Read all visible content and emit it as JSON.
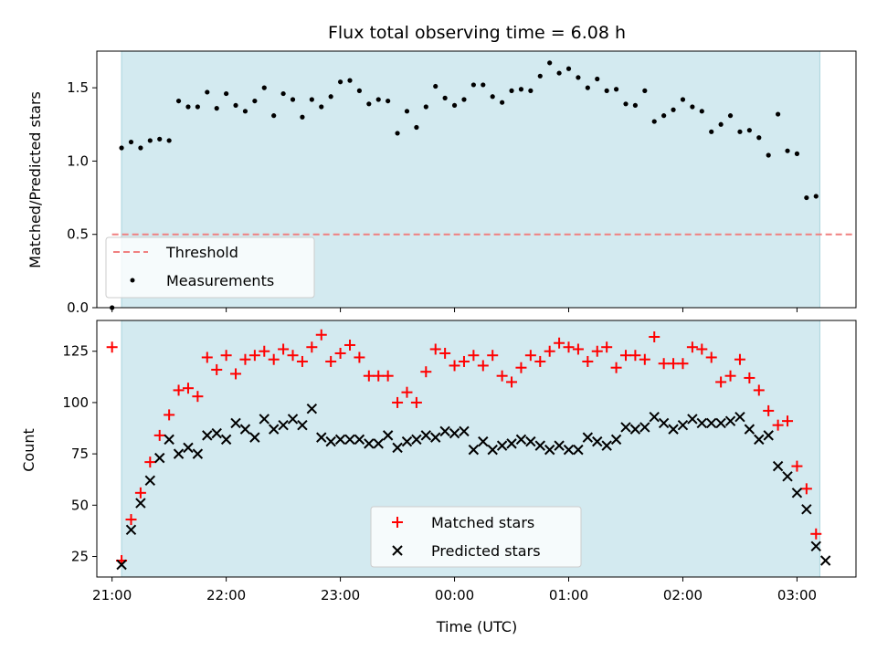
{
  "chart_data": [
    {
      "type": "scatter",
      "title": "Flux total observing time = 6.08 h",
      "xlabel": "",
      "ylabel": "Matched/Predicted stars",
      "xlim": [
        "20:52",
        "03:31"
      ],
      "ylim": [
        0,
        1.75
      ],
      "yticks": [
        "0.0",
        "0.5",
        "1.0",
        "1.5"
      ],
      "x_ticks": [
        "21:00",
        "22:00",
        "23:00",
        "00:00",
        "01:00",
        "02:00",
        "03:00"
      ],
      "observing_window": [
        "21:05",
        "03:12"
      ],
      "colors": {
        "window": "#d3eaf0",
        "threshold": "#f08080",
        "points": "#000000"
      },
      "legend": {
        "position": "lower-left",
        "entries": [
          "Threshold",
          "Measurements"
        ]
      },
      "threshold": 0.5,
      "series": [
        {
          "name": "Measurements",
          "x": [
            "21:00",
            "21:05",
            "21:10",
            "21:15",
            "21:20",
            "21:25",
            "21:30",
            "21:35",
            "21:40",
            "21:45",
            "21:50",
            "21:55",
            "22:00",
            "22:05",
            "22:10",
            "22:15",
            "22:20",
            "22:25",
            "22:30",
            "22:35",
            "22:40",
            "22:45",
            "22:50",
            "22:55",
            "23:00",
            "23:05",
            "23:10",
            "23:15",
            "23:20",
            "23:25",
            "23:30",
            "23:35",
            "23:40",
            "23:45",
            "23:50",
            "23:55",
            "00:00",
            "00:05",
            "00:10",
            "00:15",
            "00:20",
            "00:25",
            "00:30",
            "00:35",
            "00:40",
            "00:45",
            "00:50",
            "00:55",
            "01:00",
            "01:05",
            "01:10",
            "01:15",
            "01:20",
            "01:25",
            "01:30",
            "01:35",
            "01:40",
            "01:45",
            "01:50",
            "01:55",
            "02:00",
            "02:05",
            "02:10",
            "02:15",
            "02:20",
            "02:25",
            "02:30",
            "02:35",
            "02:40",
            "02:45",
            "02:50",
            "02:55",
            "03:00",
            "03:05",
            "03:10"
          ],
          "y": [
            0.0,
            1.09,
            1.13,
            1.09,
            1.14,
            1.15,
            1.14,
            1.41,
            1.37,
            1.37,
            1.47,
            1.36,
            1.46,
            1.38,
            1.34,
            1.41,
            1.5,
            1.31,
            1.46,
            1.42,
            1.3,
            1.42,
            1.37,
            1.44,
            1.54,
            1.55,
            1.48,
            1.39,
            1.42,
            1.41,
            1.19,
            1.34,
            1.23,
            1.37,
            1.51,
            1.43,
            1.38,
            1.42,
            1.52,
            1.52,
            1.44,
            1.4,
            1.48,
            1.49,
            1.48,
            1.58,
            1.67,
            1.6,
            1.63,
            1.57,
            1.5,
            1.56,
            1.48,
            1.49,
            1.39,
            1.38,
            1.48,
            1.27,
            1.31,
            1.35,
            1.42,
            1.37,
            1.34,
            1.2,
            1.25,
            1.31,
            1.2,
            1.21,
            1.16,
            1.04,
            1.32,
            1.07,
            1.05,
            0.75,
            0.76
          ]
        }
      ]
    },
    {
      "type": "scatter",
      "title": "",
      "xlabel": "Time (UTC)",
      "ylabel": "Count",
      "xlim": [
        "20:52",
        "03:31"
      ],
      "ylim": [
        15,
        140
      ],
      "yticks": [
        "25",
        "50",
        "75",
        "100",
        "125"
      ],
      "x_ticks": [
        "21:00",
        "22:00",
        "23:00",
        "00:00",
        "01:00",
        "02:00",
        "03:00"
      ],
      "observing_window": [
        "21:05",
        "03:12"
      ],
      "colors": {
        "window": "#d3eaf0",
        "matched": "#ff0000",
        "predicted": "#000000"
      },
      "legend": {
        "position": "lower-center",
        "entries": [
          "Matched stars",
          "Predicted stars"
        ]
      },
      "series": [
        {
          "name": "Matched stars",
          "marker": "plus",
          "x": [
            "21:00",
            "21:05",
            "21:10",
            "21:15",
            "21:20",
            "21:25",
            "21:30",
            "21:35",
            "21:40",
            "21:45",
            "21:50",
            "21:55",
            "22:00",
            "22:05",
            "22:10",
            "22:15",
            "22:20",
            "22:25",
            "22:30",
            "22:35",
            "22:40",
            "22:45",
            "22:50",
            "22:55",
            "23:00",
            "23:05",
            "23:10",
            "23:15",
            "23:20",
            "23:25",
            "23:30",
            "23:35",
            "23:40",
            "23:45",
            "23:50",
            "23:55",
            "00:00",
            "00:05",
            "00:10",
            "00:15",
            "00:20",
            "00:25",
            "00:30",
            "00:35",
            "00:40",
            "00:45",
            "00:50",
            "00:55",
            "01:00",
            "01:05",
            "01:10",
            "01:15",
            "01:20",
            "01:25",
            "01:30",
            "01:35",
            "01:40",
            "01:45",
            "01:50",
            "01:55",
            "02:00",
            "02:05",
            "02:10",
            "02:15",
            "02:20",
            "02:25",
            "02:30",
            "02:35",
            "02:40",
            "02:45",
            "02:50",
            "02:55",
            "03:00",
            "03:05",
            "03:10"
          ],
          "y": [
            127,
            23,
            43,
            56,
            71,
            84,
            94,
            106,
            107,
            103,
            122,
            116,
            123,
            114,
            121,
            123,
            125,
            121,
            126,
            123,
            120,
            127,
            133,
            120,
            124,
            128,
            122,
            113,
            113,
            113,
            100,
            105,
            100,
            115,
            126,
            124,
            118,
            120,
            123,
            118,
            123,
            113,
            110,
            117,
            123,
            120,
            125,
            129,
            127,
            126,
            120,
            125,
            127,
            117,
            123,
            123,
            121,
            132,
            119,
            119,
            119,
            127,
            126,
            122,
            110,
            113,
            121,
            112,
            106,
            96,
            89,
            91,
            69,
            58,
            36
          ]
        },
        {
          "name": "Predicted stars",
          "marker": "x",
          "x": [
            "21:05",
            "21:10",
            "21:15",
            "21:20",
            "21:25",
            "21:30",
            "21:35",
            "21:40",
            "21:45",
            "21:50",
            "21:55",
            "22:00",
            "22:05",
            "22:10",
            "22:15",
            "22:20",
            "22:25",
            "22:30",
            "22:35",
            "22:40",
            "22:45",
            "22:50",
            "22:55",
            "23:00",
            "23:05",
            "23:10",
            "23:15",
            "23:20",
            "23:25",
            "23:30",
            "23:35",
            "23:40",
            "23:45",
            "23:50",
            "23:55",
            "00:00",
            "00:05",
            "00:10",
            "00:15",
            "00:20",
            "00:25",
            "00:30",
            "00:35",
            "00:40",
            "00:45",
            "00:50",
            "00:55",
            "01:00",
            "01:05",
            "01:10",
            "01:15",
            "01:20",
            "01:25",
            "01:30",
            "01:35",
            "01:40",
            "01:45",
            "01:50",
            "01:55",
            "02:00",
            "02:05",
            "02:10",
            "02:15",
            "02:20",
            "02:25",
            "02:30",
            "02:35",
            "02:40",
            "02:45",
            "02:50",
            "02:55",
            "03:00",
            "03:05",
            "03:10",
            "03:15"
          ],
          "y": [
            21,
            38,
            51,
            62,
            73,
            82,
            75,
            78,
            75,
            84,
            85,
            82,
            90,
            87,
            83,
            92,
            87,
            89,
            92,
            89,
            97,
            83,
            81,
            82,
            82,
            82,
            80,
            80,
            84,
            78,
            81,
            82,
            84,
            83,
            86,
            85,
            86,
            77,
            81,
            77,
            79,
            80,
            82,
            81,
            79,
            77,
            79,
            77,
            77,
            83,
            81,
            79,
            82,
            88,
            87,
            88,
            93,
            90,
            87,
            89,
            92,
            90,
            90,
            90,
            91,
            93,
            87,
            82,
            84,
            69,
            64,
            56,
            48,
            30,
            23
          ]
        }
      ]
    }
  ]
}
